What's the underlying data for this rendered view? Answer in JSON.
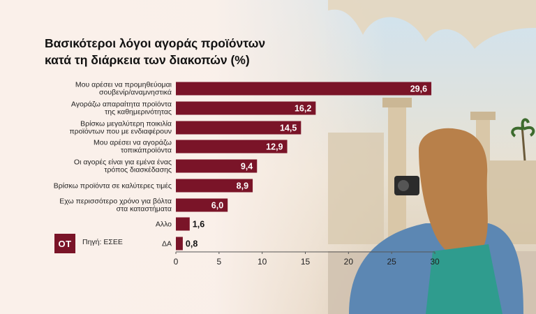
{
  "title_line1": "Βασικότεροι λόγοι αγοράς προϊόντων",
  "title_line2": "κατά τη διάρκεια των διακοπών (%)",
  "logo_text": "ΟΤ",
  "source": "Πηγή: ΕΣΕΕ",
  "colors": {
    "bar": "#7a1428",
    "text": "#222222"
  },
  "chart_data": {
    "type": "bar",
    "orientation": "horizontal",
    "title": "Βασικότεροι λόγοι αγοράς προϊόντων κατά τη διάρκεια των διακοπών (%)",
    "categories": [
      [
        "Μου αρέσει να προμηθεύομαι",
        "σουβενίρ/αναμνηστικά"
      ],
      [
        "Αγοράζω απαραίτητα προϊόντα",
        "της καθημερινότητας"
      ],
      [
        "Βρίσκω μεγαλύτερη ποικιλία",
        "προϊόντων που με ενδιαφέρουν"
      ],
      [
        "Μου αρέσει να αγοράζω",
        "τοπικάπροϊόντα"
      ],
      [
        "Οι αγορές είναι για εμένα ένας",
        "τρόπος διασκέδασης"
      ],
      [
        "Βρίσκω προϊόντα σε καλύτερες τιμές"
      ],
      [
        "Εχω περισσότερο χρόνο για βόλτα",
        "στα καταστήματα"
      ],
      [
        "Αλλο"
      ],
      [
        "ΔΑ"
      ]
    ],
    "values": [
      29.6,
      16.2,
      14.5,
      12.9,
      9.4,
      8.9,
      6.0,
      1.6,
      0.8
    ],
    "value_labels": [
      "29,6",
      "16,2",
      "14,5",
      "12,9",
      "9,4",
      "8,9",
      "6,0",
      "1,6",
      "0,8"
    ],
    "xlim": [
      0,
      30
    ],
    "xticks": [
      "0",
      "5",
      "10",
      "15",
      "20",
      "25",
      "30"
    ],
    "grid": false,
    "legend": "none"
  }
}
